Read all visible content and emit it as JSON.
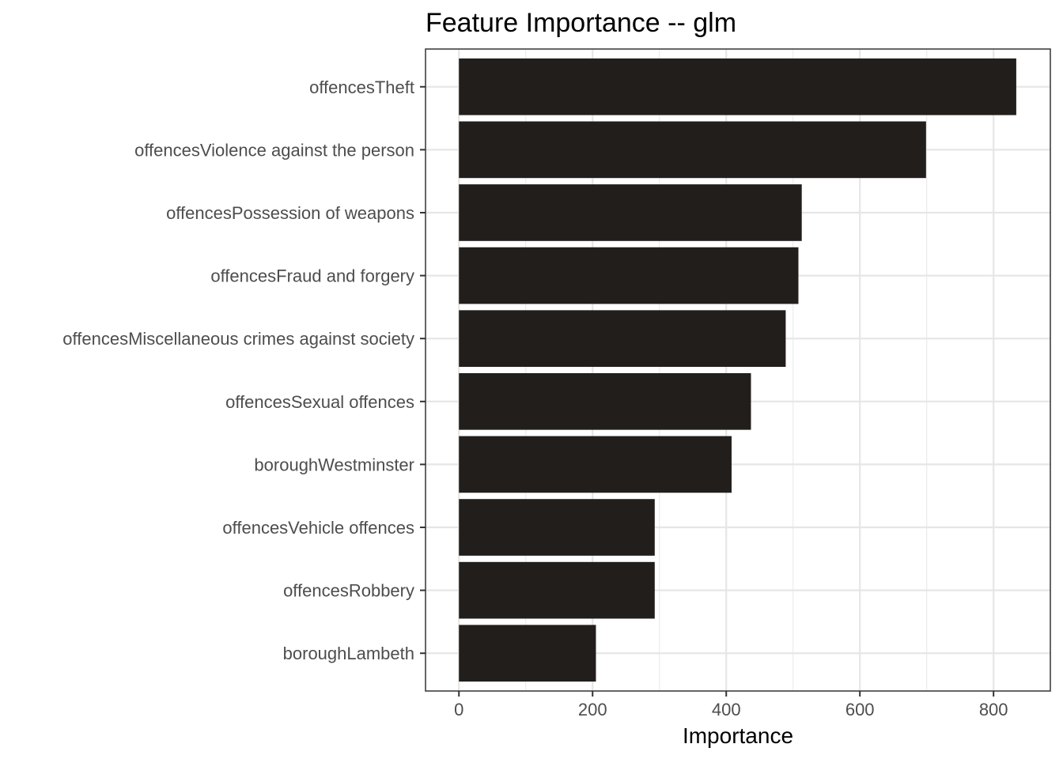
{
  "chart_data": {
    "type": "bar",
    "orientation": "horizontal",
    "title": "Feature Importance -- glm",
    "xlabel": "Importance",
    "ylabel": "",
    "xlim": [
      -50,
      885
    ],
    "xticks": [
      0,
      200,
      400,
      600,
      800
    ],
    "grid": true,
    "bar_color": "#221e1b",
    "categories": [
      "offencesTheft",
      "offencesViolence against the person",
      "offencesPossession of weapons",
      "offencesFraud and forgery",
      "offencesMiscellaneous crimes against society",
      "offencesSexual offences",
      "boroughWestminster",
      "offencesVehicle offences",
      "offencesRobbery",
      "boroughLambeth"
    ],
    "values": [
      834,
      699,
      513,
      508,
      489,
      437,
      408,
      293,
      293,
      205
    ]
  }
}
